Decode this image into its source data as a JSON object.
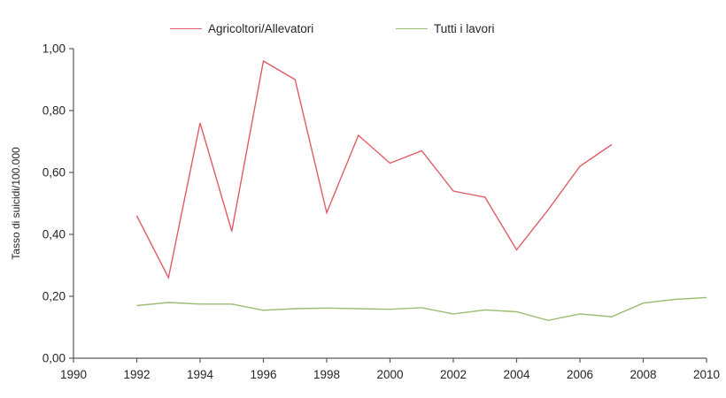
{
  "chart_data": {
    "type": "line",
    "title": "",
    "xlabel": "",
    "ylabel": "Tasso di suicidi/100.000",
    "xlim": [
      1990,
      2010
    ],
    "ylim": [
      0.0,
      1.0
    ],
    "xticks": [
      1990,
      1992,
      1994,
      1996,
      1998,
      2000,
      2002,
      2004,
      2006,
      2008,
      2010
    ],
    "xtick_labels": [
      "1990",
      "1992",
      "1994",
      "1996",
      "1998",
      "2000",
      "2002",
      "2004",
      "2006",
      "2008",
      "2010"
    ],
    "yticks": [
      0.0,
      0.2,
      0.4,
      0.6,
      0.8,
      1.0
    ],
    "ytick_labels": [
      "0,00",
      "0,20",
      "0,40",
      "0,60",
      "0,80",
      "1,00"
    ],
    "grid": false,
    "legend_position": "top",
    "axis_color": "#595959",
    "tick_label_color": "#262626",
    "series": [
      {
        "name": "Agricoltori/Allevatori",
        "color": "#e05c66",
        "x": [
          1992,
          1993,
          1994,
          1995,
          1996,
          1997,
          1998,
          1999,
          2000,
          2001,
          2002,
          2003,
          2004,
          2005,
          2006,
          2007
        ],
        "y": [
          0.46,
          0.26,
          0.76,
          0.41,
          0.96,
          0.9,
          0.47,
          0.72,
          0.63,
          0.67,
          0.54,
          0.52,
          0.35,
          0.48,
          0.62,
          0.69
        ]
      },
      {
        "name": "Tutti i lavori",
        "color": "#9bbd72",
        "x": [
          1992,
          1993,
          1994,
          1995,
          1996,
          1997,
          1998,
          1999,
          2000,
          2001,
          2002,
          2003,
          2004,
          2005,
          2006,
          2007,
          2008,
          2009,
          2010
        ],
        "y": [
          0.17,
          0.18,
          0.175,
          0.175,
          0.155,
          0.16,
          0.162,
          0.16,
          0.158,
          0.163,
          0.143,
          0.156,
          0.15,
          0.122,
          0.143,
          0.134,
          0.178,
          0.19,
          0.196
        ]
      }
    ]
  }
}
